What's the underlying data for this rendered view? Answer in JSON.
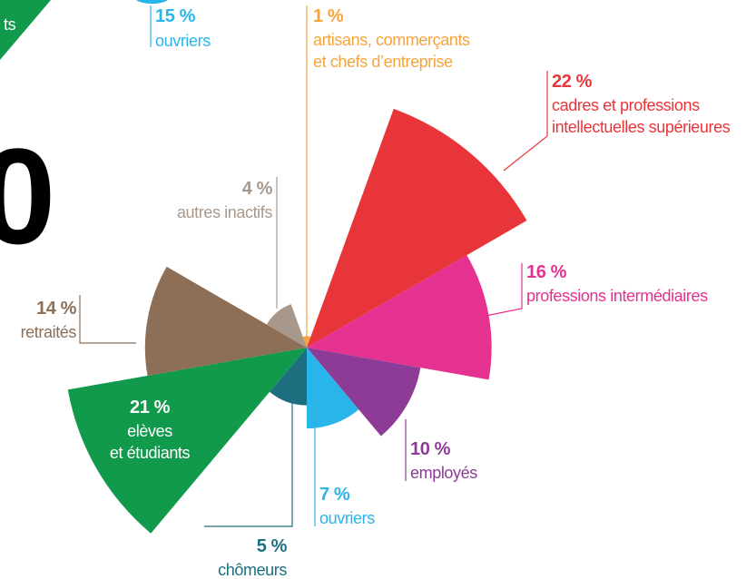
{
  "chart_data": {
    "type": "polar-area",
    "categories": [
      [
        "artisans, commerçants",
        "et chefs d’entreprise"
      ],
      [
        "cadres et professions",
        "intellectuelles supérieures"
      ],
      [
        "professions intermédiaires"
      ],
      [
        "employés"
      ],
      [
        "ouvriers"
      ],
      [
        "chômeurs"
      ],
      [
        "elèves",
        "et étudiants"
      ],
      [
        "retraités"
      ],
      [
        "autres inactifs"
      ]
    ],
    "values": [
      1,
      22,
      16,
      10,
      7,
      5,
      21,
      14,
      4
    ],
    "value_labels": [
      "1 %",
      "22 %",
      "16 %",
      "10 %",
      "7 %",
      "5 %",
      "21 %",
      "14 %",
      "4 %"
    ],
    "colors": [
      "#f4a43c",
      "#e8353a",
      "#e5318f",
      "#8e3b97",
      "#29b5ea",
      "#1d6f80",
      "#119a4c",
      "#8d6e56",
      "#a8988c"
    ],
    "fragments": {
      "partial_label": "ts",
      "other_value_label": "15 %",
      "other_category": "ouvriers",
      "big_text": "0"
    }
  }
}
